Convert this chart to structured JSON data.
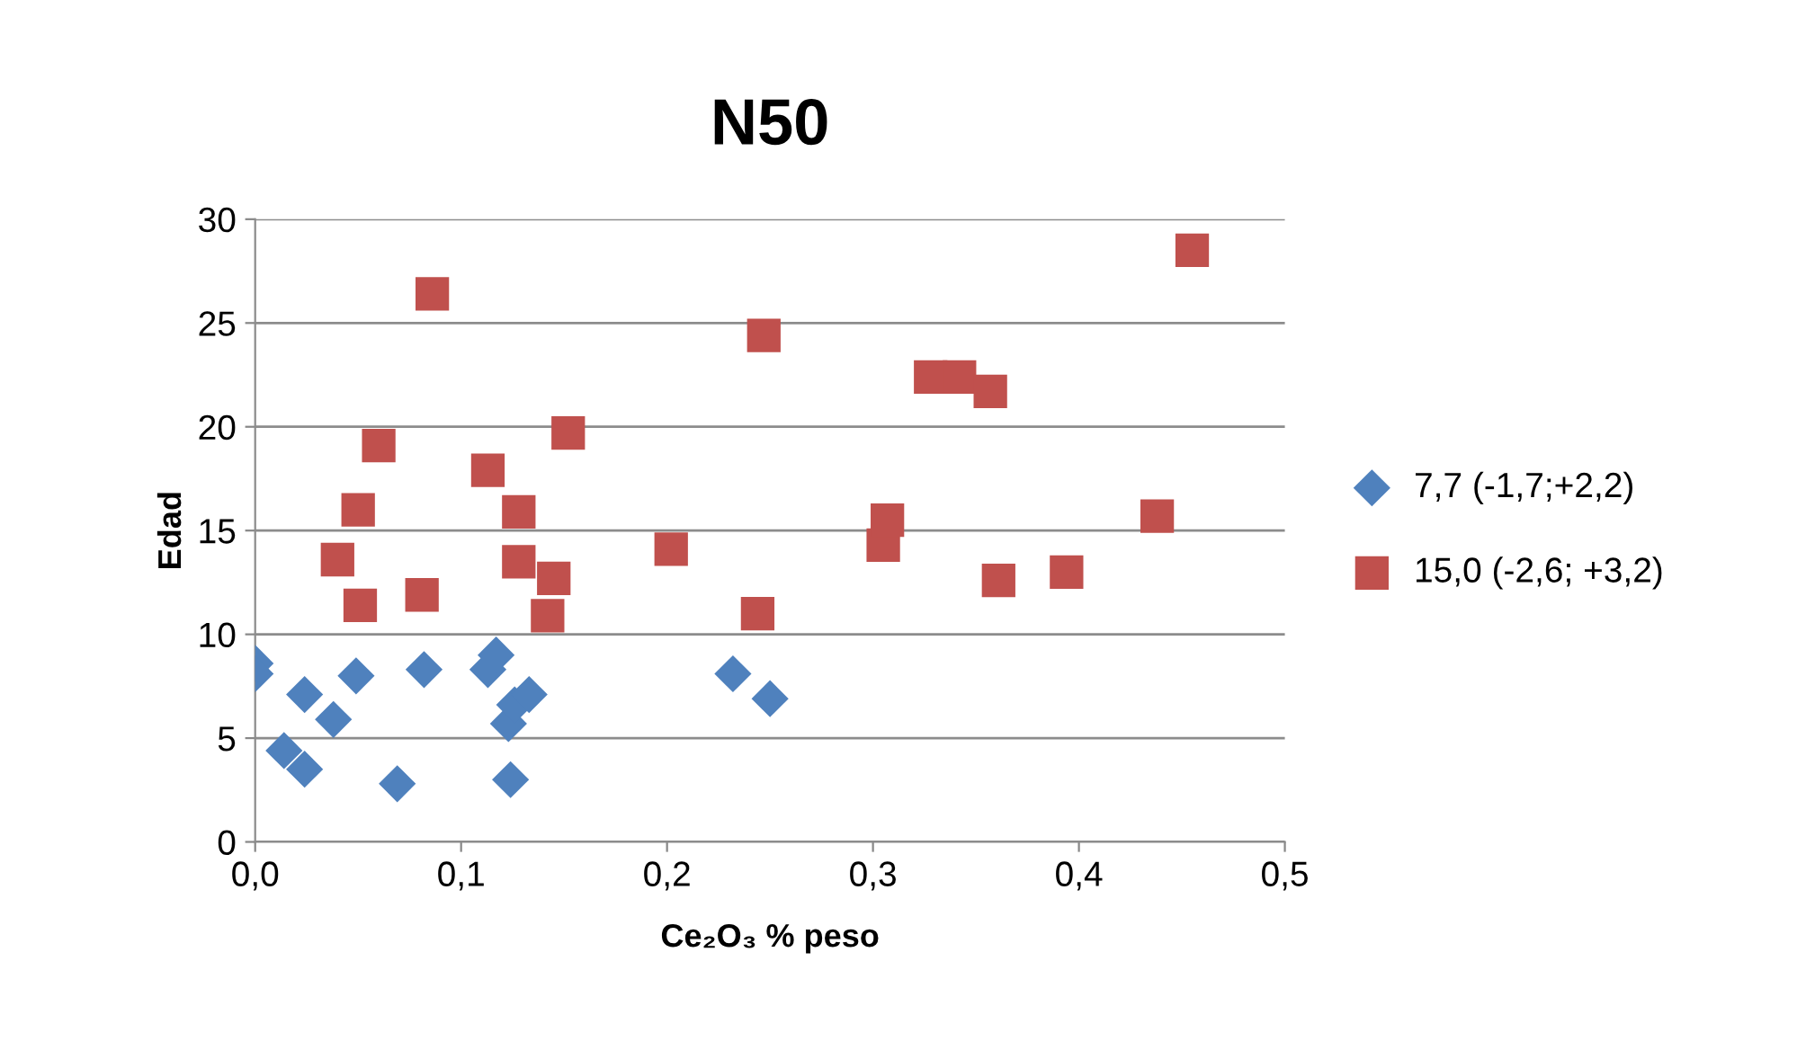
{
  "chart_data": {
    "type": "scatter",
    "title": "N50",
    "xlabel": "Ce₂O₃ % peso",
    "ylabel": "Edad",
    "xlim": [
      0,
      0.5
    ],
    "xticks": [
      {
        "value": 0,
        "label": "0,0"
      },
      {
        "value": 0.1,
        "label": "0,1"
      },
      {
        "value": 0.2,
        "label": "0,2"
      },
      {
        "value": 0.3,
        "label": "0,3"
      },
      {
        "value": 0.4,
        "label": "0,4"
      },
      {
        "value": 0.5,
        "label": "0,5"
      }
    ],
    "ylim": [
      0,
      30
    ],
    "yticks": [
      0,
      5,
      10,
      15,
      20,
      25,
      30
    ],
    "grid": "y",
    "legend": "right",
    "series": [
      {
        "name": "7,7 (-1,7;+2,2)",
        "color": "#4f81bd",
        "marker": "diamond",
        "x": [
          0,
          0,
          0.014,
          0.024,
          0.024,
          0.038,
          0.049,
          0.069,
          0.082,
          0.113,
          0.117,
          0.123,
          0.126,
          0.133,
          0.124,
          0.232,
          0.25
        ],
        "values": [
          8.6,
          8.1,
          4.4,
          3.5,
          7.1,
          5.9,
          8.0,
          2.8,
          8.3,
          8.3,
          9.0,
          5.7,
          6.6,
          7.1,
          3.0,
          8.1,
          6.9
        ]
      },
      {
        "name": "15,0 (-2,6; +3,2)",
        "color": "#c0504d",
        "marker": "square",
        "x": [
          0.086,
          0.06,
          0.05,
          0.04,
          0.051,
          0.081,
          0.113,
          0.128,
          0.128,
          0.145,
          0.142,
          0.152,
          0.202,
          0.247,
          0.244,
          0.305,
          0.307,
          0.328,
          0.342,
          0.357,
          0.361,
          0.394,
          0.438,
          0.455
        ],
        "values": [
          26.4,
          19.1,
          16.0,
          13.6,
          11.4,
          11.9,
          17.9,
          15.9,
          13.5,
          12.7,
          10.9,
          19.7,
          14.1,
          24.4,
          11.0,
          14.3,
          15.5,
          22.4,
          22.4,
          21.7,
          12.6,
          13.0,
          15.7,
          28.5
        ]
      }
    ]
  }
}
